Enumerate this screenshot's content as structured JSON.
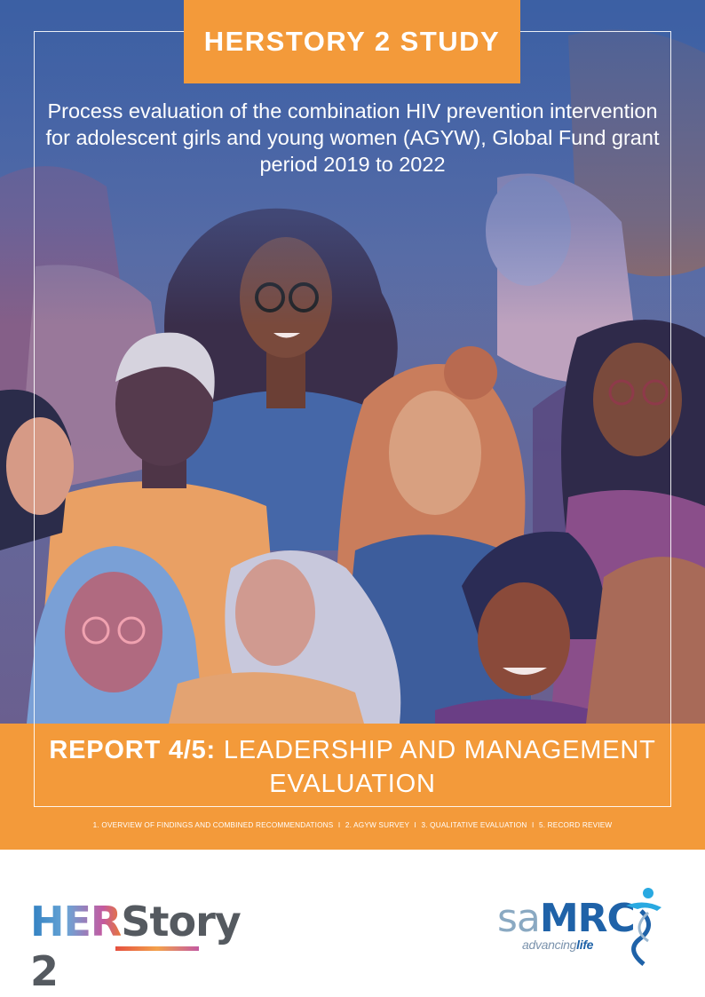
{
  "cover": {
    "study_title": "HERSTORY 2 STUDY",
    "subtitle": "Process evaluation of the combination HIV prevention intervention for adolescent girls and young women (AGYW), Global Fund grant period 2019 to 2022",
    "report_label": "REPORT 4/5:",
    "report_title_rest": " LEADERSHIP AND MANAGEMENT EVALUATION",
    "series": [
      "1. OVERVIEW OF FINDINGS AND COMBINED RECOMMENDATIONS",
      "2. AGYW SURVEY",
      "3. QUALITATIVE EVALUATION",
      "5. RECORD REVIEW"
    ],
    "series_separator": "I"
  },
  "logos": {
    "herstory_her": "HER",
    "herstory_story": "Story 2",
    "samrc_sa": "sa",
    "samrc_mrc": "MRC",
    "samrc_tag_1": "advancing",
    "samrc_tag_2": "life"
  },
  "colors": {
    "orange": "#f39a3a",
    "samrc_blue": "#1f62a8"
  }
}
